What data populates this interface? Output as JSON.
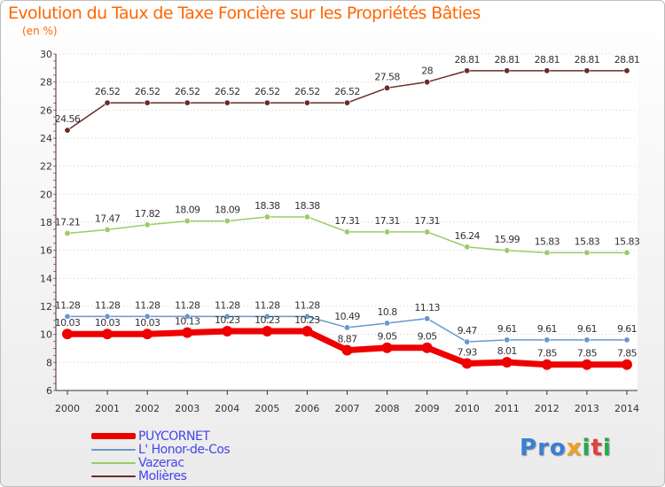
{
  "title": "Evolution du Taux de Taxe Foncière sur les Propriétés Bâties",
  "subtitle": "(en %)",
  "logo": {
    "letters": [
      "P",
      "r",
      "o",
      "x",
      "i",
      "t",
      "i"
    ],
    "colors": [
      "#3a7fd5",
      "#3a7fd5",
      "#3a7fd5",
      "#f0a020",
      "#2aa84a",
      "#e04040",
      "#2aa84a"
    ]
  },
  "chart_data": {
    "type": "line",
    "title": "Evolution du Taux de Taxe Foncière sur les Propriétés Bâties",
    "ylabel": "(en %)",
    "xlabel": "",
    "x": [
      "2000",
      "2001",
      "2002",
      "2003",
      "2004",
      "2005",
      "2006",
      "2007",
      "2008",
      "2009",
      "2010",
      "2011",
      "2012",
      "2013",
      "2014"
    ],
    "ylim": [
      6,
      30
    ],
    "yticks": [
      "6",
      "8",
      "10",
      "12",
      "14",
      "16",
      "18",
      "20",
      "22",
      "24",
      "26",
      "28",
      "30"
    ],
    "grid": "horizontal dotted",
    "legend_position": "bottom-left",
    "series": [
      {
        "name": "Molières",
        "color": "#6b2a2a",
        "width": 1.5,
        "values": [
          24.56,
          26.52,
          26.52,
          26.52,
          26.52,
          26.52,
          26.52,
          26.52,
          27.58,
          28,
          28.81,
          28.81,
          28.81,
          28.81,
          28.81
        ],
        "labels": [
          "24.56",
          "26.52",
          "26.52",
          "26.52",
          "26.52",
          "26.52",
          "26.52",
          "26.52",
          "27.58",
          "28",
          "28.81",
          "28.81",
          "28.81",
          "28.81",
          "28.81"
        ]
      },
      {
        "name": "Vazerac",
        "color": "#99cc66",
        "width": 1.5,
        "values": [
          17.21,
          17.47,
          17.82,
          18.09,
          18.09,
          18.38,
          18.38,
          17.31,
          17.31,
          17.31,
          16.24,
          15.99,
          15.83,
          15.83,
          15.83
        ],
        "labels": [
          "17.21",
          "17.47",
          "17.82",
          "18.09",
          "18.09",
          "18.38",
          "18.38",
          "17.31",
          "17.31",
          "17.31",
          "16.24",
          "15.99",
          "15.83",
          "15.83",
          "15.83"
        ]
      },
      {
        "name": "L' Honor-de-Cos",
        "color": "#6699cc",
        "width": 1.5,
        "values": [
          11.28,
          11.28,
          11.28,
          11.28,
          11.28,
          11.28,
          11.28,
          10.49,
          10.8,
          11.13,
          9.47,
          9.61,
          9.61,
          9.61,
          9.61
        ],
        "labels": [
          "11.28",
          "11.28",
          "11.28",
          "11.28",
          "11.28",
          "11.28",
          "11.28",
          "10.49",
          "10.8",
          "11.13",
          "9.47",
          "9.61",
          "9.61",
          "9.61",
          "9.61"
        ]
      },
      {
        "name": "PUYCORNET",
        "color": "#ee0000",
        "width": 7,
        "values": [
          10.03,
          10.03,
          10.03,
          10.13,
          10.23,
          10.23,
          10.23,
          8.87,
          9.05,
          9.05,
          7.93,
          8.01,
          7.85,
          7.85,
          7.85
        ],
        "labels": [
          "10.03",
          "10.03",
          "10.03",
          "10.13",
          "10.23",
          "10.23",
          "10.23",
          "8.87",
          "9.05",
          "9.05",
          "7.93",
          "8.01",
          "7.85",
          "7.85",
          "7.85"
        ]
      }
    ],
    "legend": [
      {
        "name": "PUYCORNET",
        "color": "#ee0000",
        "thickness": 7
      },
      {
        "name": "L' Honor-de-Cos",
        "color": "#6699cc",
        "thickness": 2
      },
      {
        "name": "Vazerac",
        "color": "#99cc66",
        "thickness": 2
      },
      {
        "name": "Molières",
        "color": "#6b2a2a",
        "thickness": 2
      }
    ]
  }
}
